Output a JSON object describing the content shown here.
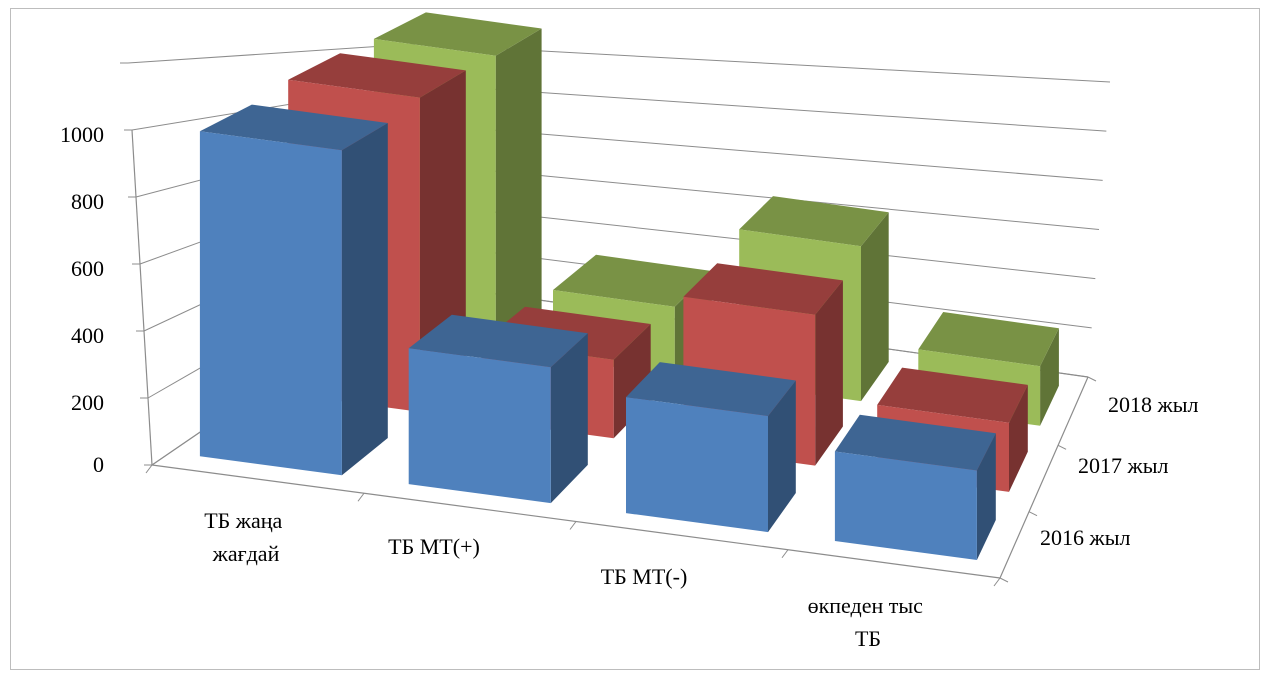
{
  "chart_data": {
    "type": "bar",
    "categories": [
      "ТБ жаңа жағдай",
      "ТБ МТ(+)",
      "ТБ МТ(-)",
      "өкпеден тыс ТБ"
    ],
    "series": [
      {
        "name": "2016 жыл",
        "values": [
          980,
          410,
          350,
          270
        ],
        "color": "#4F81BD"
      },
      {
        "name": "2017 жыл",
        "values": [
          1000,
          250,
          480,
          220
        ],
        "color": "#C0504D"
      },
      {
        "name": "2018 жыл",
        "values": [
          990,
          230,
          520,
          200
        ],
        "color": "#9BBB59"
      }
    ],
    "yticks": [
      0,
      200,
      400,
      600,
      800,
      1000
    ],
    "ylim": [
      0,
      1000
    ],
    "grid": true,
    "title": "",
    "xlabel": "",
    "ylabel": ""
  }
}
